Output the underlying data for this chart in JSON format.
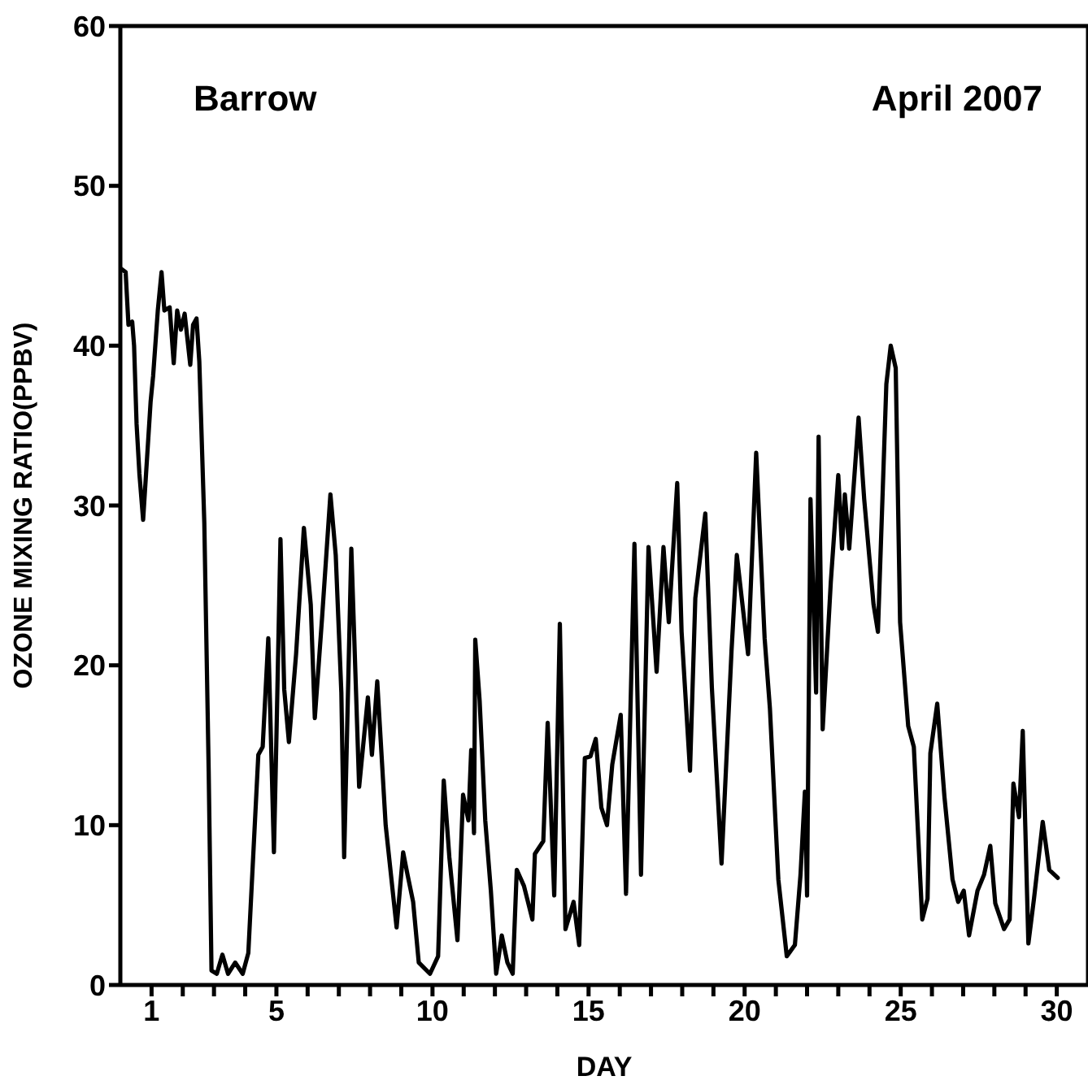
{
  "chart_data": {
    "type": "line",
    "xlabel": "DAY",
    "ylabel": "OZONE MIXING RATIO(PPBV)",
    "annotations": [
      "Barrow",
      "April 2007"
    ],
    "xlim": [
      0,
      31
    ],
    "ylim": [
      0,
      60
    ],
    "xticks": [
      1,
      {
        "value": 2,
        "label": null
      },
      {
        "value": 3,
        "label": null
      },
      {
        "value": 4,
        "label": null
      },
      5,
      {
        "value": 6,
        "label": null
      },
      {
        "value": 7,
        "label": null
      },
      {
        "value": 8,
        "label": null
      },
      {
        "value": 9,
        "label": null
      },
      10,
      {
        "value": 11,
        "label": null
      },
      {
        "value": 12,
        "label": null
      },
      {
        "value": 13,
        "label": null
      },
      {
        "value": 14,
        "label": null
      },
      15,
      {
        "value": 16,
        "label": null
      },
      {
        "value": 17,
        "label": null
      },
      {
        "value": 18,
        "label": null
      },
      {
        "value": 19,
        "label": null
      },
      20,
      {
        "value": 21,
        "label": null
      },
      {
        "value": 22,
        "label": null
      },
      {
        "value": 23,
        "label": null
      },
      {
        "value": 24,
        "label": null
      },
      25,
      {
        "value": 26,
        "label": null
      },
      {
        "value": 27,
        "label": null
      },
      {
        "value": 28,
        "label": null
      },
      {
        "value": 29,
        "label": null
      },
      30
    ],
    "yticks": [
      0,
      10,
      20,
      30,
      40,
      50,
      60
    ],
    "marker": "none",
    "line_style": "solid",
    "series": [
      {
        "color": "#000000",
        "x": [
          0.03,
          0.17,
          0.26,
          0.38,
          0.44,
          0.52,
          0.61,
          0.73,
          0.97,
          1.05,
          1.2,
          1.32,
          1.41,
          1.58,
          1.71,
          1.82,
          1.94,
          2.06,
          2.24,
          2.33,
          2.44,
          2.53,
          2.69,
          2.83,
          2.92,
          3.09,
          3.27,
          3.45,
          3.68,
          3.92,
          4.1,
          4.42,
          4.56,
          4.74,
          4.92,
          5.0,
          5.13,
          5.25,
          5.4,
          5.63,
          5.88,
          6.1,
          6.23,
          6.46,
          6.73,
          6.9,
          7.08,
          7.17,
          7.4,
          7.65,
          7.93,
          8.06,
          8.23,
          8.5,
          8.85,
          9.06,
          9.2,
          9.38,
          9.56,
          9.92,
          10.18,
          10.36,
          10.54,
          10.8,
          10.98,
          11.15,
          11.24,
          11.33,
          11.37,
          11.51,
          11.69,
          11.87,
          12.04,
          12.22,
          12.4,
          12.57,
          12.7,
          12.93,
          13.2,
          13.28,
          13.55,
          13.69,
          13.9,
          14.08,
          14.26,
          14.52,
          14.7,
          14.88,
          15.06,
          15.23,
          15.41,
          15.59,
          15.76,
          16.03,
          16.2,
          16.47,
          16.68,
          16.92,
          17.18,
          17.4,
          17.57,
          17.84,
          17.98,
          18.25,
          18.42,
          18.74,
          18.95,
          19.26,
          19.58,
          19.75,
          20.11,
          20.37,
          20.64,
          20.81,
          21.08,
          21.35,
          21.61,
          21.79,
          21.93,
          22.0,
          22.11,
          22.29,
          22.37,
          22.5,
          22.76,
          23.0,
          23.12,
          23.21,
          23.35,
          23.65,
          23.83,
          24.13,
          24.27,
          24.54,
          24.68,
          24.84,
          24.98,
          25.24,
          25.42,
          25.69,
          25.86,
          25.95,
          26.17,
          26.4,
          26.66,
          26.84,
          27.02,
          27.19,
          27.46,
          27.67,
          27.87,
          28.03,
          28.31,
          28.49,
          28.61,
          28.79,
          28.91,
          29.09,
          29.27,
          29.55,
          29.76,
          30.03
        ],
        "values": [
          44.8,
          44.6,
          41.3,
          41.5,
          40,
          35.1,
          32,
          29.1,
          36.5,
          38.1,
          42.2,
          44.6,
          42.2,
          42.4,
          38.9,
          42.2,
          41,
          42,
          38.8,
          41.3,
          41.7,
          39,
          28.9,
          13.4,
          0.9,
          0.7,
          1.9,
          0.7,
          1.4,
          0.7,
          2,
          14.4,
          14.9,
          21.7,
          8.3,
          15.5,
          27.9,
          18.5,
          15.2,
          20.7,
          28.6,
          23.8,
          16.7,
          22.9,
          30.7,
          26.9,
          18.3,
          8,
          27.3,
          12.4,
          18,
          14.4,
          19,
          10,
          3.6,
          8.3,
          6.9,
          5.2,
          1.4,
          0.7,
          1.8,
          12.8,
          8,
          2.8,
          11.9,
          10.3,
          14.7,
          9.5,
          21.6,
          17.8,
          10.3,
          5.9,
          0.7,
          3.1,
          1.4,
          0.7,
          7.2,
          6.2,
          4.1,
          8.2,
          9,
          16.4,
          5.6,
          22.6,
          3.5,
          5.2,
          2.5,
          14.2,
          14.3,
          15.4,
          11.1,
          10,
          13.8,
          16.9,
          5.7,
          27.6,
          6.9,
          27.4,
          19.6,
          27.4,
          22.7,
          31.4,
          22.1,
          13.4,
          24.2,
          29.5,
          18.6,
          7.6,
          20.9,
          26.9,
          20.7,
          33.3,
          21.7,
          17.3,
          6.6,
          1.8,
          2.5,
          6.9,
          12.1,
          5.6,
          30.4,
          18.3,
          34.3,
          16,
          25.2,
          31.9,
          27.3,
          30.7,
          27.3,
          35.5,
          30.4,
          23.8,
          22.1,
          37.6,
          40,
          38.6,
          22.7,
          16.2,
          14.9,
          4.1,
          5.4,
          14.5,
          17.6,
          11.8,
          6.6,
          5.2,
          5.9,
          3.1,
          5.9,
          6.9,
          8.7,
          5.1,
          3.5,
          4.1,
          12.6,
          10.5,
          15.9,
          2.6,
          5.4,
          10.2,
          7.2,
          6.7
        ]
      }
    ]
  }
}
